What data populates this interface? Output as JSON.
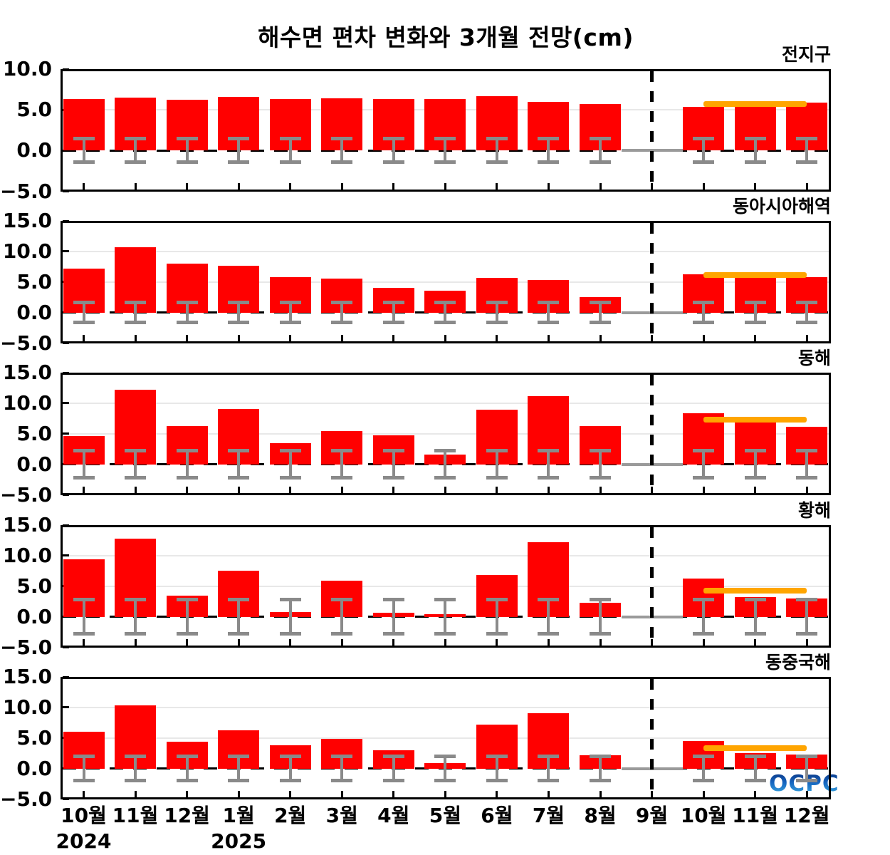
{
  "chart_data": {
    "type": "bar",
    "title": "해수면 편차 변화와 3개월 전망(cm)",
    "x_categories": [
      "10월",
      "11월",
      "12월",
      "1월",
      "2월",
      "3월",
      "4월",
      "5월",
      "6월",
      "7월",
      "8월",
      "9월",
      "10월",
      "11월",
      "12월"
    ],
    "year_labels": [
      {
        "text": "2024",
        "month_index": 0
      },
      {
        "text": "2025",
        "month_index": 3
      }
    ],
    "forecast_divider_month_index": 11,
    "grid": "on",
    "panels": [
      {
        "label": "전지구",
        "ylim": [
          -5,
          10
        ],
        "yticks": [
          "10.0",
          "5.0",
          "0.0",
          "−5.0"
        ],
        "ytick_values": [
          10,
          5,
          0,
          -5
        ],
        "gridlines": [
          5
        ],
        "values": [
          6.3,
          6.5,
          6.2,
          6.6,
          6.3,
          6.4,
          6.3,
          6.3,
          6.7,
          6.0,
          5.7,
          null,
          5.4,
          5.5,
          5.9
        ],
        "error": 1.5,
        "forecast_line": {
          "value": 5.7,
          "from_month": 12,
          "to_month": 14
        }
      },
      {
        "label": "동아시아해역",
        "ylim": [
          -5,
          15
        ],
        "yticks": [
          "15.0",
          "10.0",
          "5.0",
          "0.0",
          "−5.0"
        ],
        "ytick_values": [
          15,
          10,
          5,
          0,
          -5
        ],
        "gridlines": [
          5,
          10
        ],
        "values": [
          7.2,
          10.7,
          8.0,
          7.6,
          5.8,
          5.6,
          4.0,
          3.6,
          5.7,
          5.3,
          2.5,
          null,
          6.3,
          5.9,
          5.8
        ],
        "error": 1.7,
        "forecast_line": {
          "value": 6.1,
          "from_month": 12,
          "to_month": 14
        }
      },
      {
        "label": "동해",
        "ylim": [
          -5,
          15
        ],
        "yticks": [
          "15.0",
          "10.0",
          "5.0",
          "0.0",
          "−5.0"
        ],
        "ytick_values": [
          15,
          10,
          5,
          0,
          -5
        ],
        "gridlines": [
          5,
          10
        ],
        "values": [
          4.6,
          12.2,
          6.3,
          9.0,
          3.4,
          5.4,
          4.7,
          1.6,
          8.9,
          11.1,
          6.2,
          null,
          8.3,
          6.9,
          6.1
        ],
        "error": 2.3,
        "forecast_line": {
          "value": 7.3,
          "from_month": 12,
          "to_month": 14
        }
      },
      {
        "label": "황해",
        "ylim": [
          -5,
          15
        ],
        "yticks": [
          "15.0",
          "10.0",
          "5.0",
          "0.0",
          "−5.0"
        ],
        "ytick_values": [
          15,
          10,
          5,
          0,
          -5
        ],
        "gridlines": [
          5,
          10
        ],
        "values": [
          9.4,
          12.8,
          3.4,
          7.5,
          0.8,
          5.9,
          0.6,
          0.4,
          6.8,
          12.2,
          2.3,
          null,
          6.3,
          3.2,
          3.0
        ],
        "error": 2.9,
        "forecast_line": {
          "value": 4.3,
          "from_month": 12,
          "to_month": 14
        }
      },
      {
        "label": "동중국해",
        "ylim": [
          -5,
          15
        ],
        "yticks": [
          "15.0",
          "10.0",
          "5.0",
          "0.0",
          "−5.0"
        ],
        "ytick_values": [
          15,
          10,
          5,
          0,
          -5
        ],
        "gridlines": [
          5,
          10
        ],
        "values": [
          6.0,
          10.3,
          4.4,
          6.2,
          3.8,
          4.9,
          3.0,
          0.9,
          7.2,
          9.0,
          2.2,
          null,
          4.5,
          2.5,
          2.3
        ],
        "error": 2.0,
        "forecast_line": {
          "value": 3.3,
          "from_month": 12,
          "to_month": 14
        }
      }
    ],
    "colors": {
      "bar": "#FF0000",
      "error_bar": "#8A8A8A",
      "forecast_line": "#FFA500",
      "divider": "#000000",
      "gridline": "#E8E8E8"
    },
    "logo": "OCPC"
  }
}
